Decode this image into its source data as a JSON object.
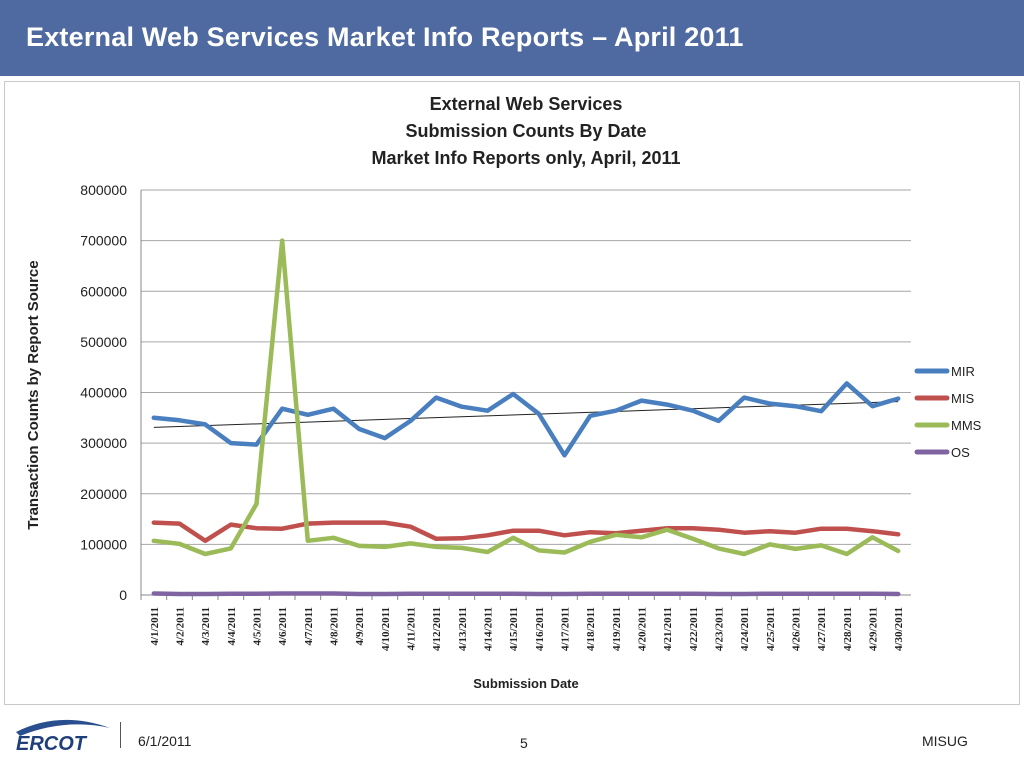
{
  "slide": {
    "title": "External Web Services Market Info Reports – April 2011",
    "footer_date": "6/1/2011",
    "page_number": "5",
    "footer_org": "MISUG",
    "logo_text": "ERCOT"
  },
  "colors": {
    "header_bg": "#4f6aa0",
    "MIR": "#4a7fbf",
    "MIS": "#c0504d",
    "MMS": "#9bbb59",
    "OS": "#8064a2",
    "trend": "#222222"
  },
  "chart_data": {
    "type": "line",
    "title_lines": [
      "External Web Services",
      "Submission Counts By Date",
      "Market Info Reports only, April, 2011"
    ],
    "xlabel": "Submission Date",
    "ylabel": "Transaction Counts by Report Source",
    "ylim": [
      0,
      800000
    ],
    "yticks": [
      0,
      100000,
      200000,
      300000,
      400000,
      500000,
      600000,
      700000,
      800000
    ],
    "grid": true,
    "legend_position": "right",
    "categories": [
      "4/1/2011",
      "4/2/2011",
      "4/3/2011",
      "4/4/2011",
      "4/5/2011",
      "4/6/2011",
      "4/7/2011",
      "4/8/2011",
      "4/9/2011",
      "4/10/2011",
      "4/11/2011",
      "4/12/2011",
      "4/13/2011",
      "4/14/2011",
      "4/15/2011",
      "4/16/2011",
      "4/17/2011",
      "4/18/2011",
      "4/19/2011",
      "4/20/2011",
      "4/21/2011",
      "4/22/2011",
      "4/23/2011",
      "4/24/2011",
      "4/25/2011",
      "4/26/2011",
      "4/27/2011",
      "4/28/2011",
      "4/29/2011",
      "4/30/2011"
    ],
    "series": [
      {
        "name": "MIR",
        "values": [
          350000,
          345000,
          337000,
          300000,
          297000,
          368000,
          356000,
          368000,
          328000,
          310000,
          344000,
          390000,
          372000,
          364000,
          397000,
          358000,
          276000,
          354000,
          364000,
          384000,
          376000,
          364000,
          344000,
          390000,
          378000,
          373000,
          363000,
          418000,
          373000,
          388000
        ]
      },
      {
        "name": "MIS",
        "values": [
          143000,
          141000,
          107000,
          139000,
          132000,
          131000,
          141000,
          143000,
          143000,
          143000,
          135000,
          111000,
          112000,
          118000,
          127000,
          127000,
          118000,
          124000,
          122000,
          127000,
          132000,
          132000,
          129000,
          123000,
          126000,
          123000,
          131000,
          131000,
          126000,
          120000
        ]
      },
      {
        "name": "MMS",
        "values": [
          107000,
          101000,
          81000,
          92000,
          180000,
          700000,
          107000,
          113000,
          97000,
          95000,
          102000,
          95000,
          93000,
          85000,
          113000,
          88000,
          84000,
          105000,
          119000,
          114000,
          129000,
          111000,
          92000,
          81000,
          100000,
          91000,
          98000,
          81000,
          114000,
          87000
        ]
      },
      {
        "name": "OS",
        "values": [
          3000,
          2000,
          2000,
          2500,
          2500,
          3000,
          3000,
          3000,
          2000,
          2000,
          2500,
          2500,
          2500,
          2500,
          2500,
          2000,
          2000,
          2500,
          2500,
          2500,
          2500,
          2500,
          2000,
          2000,
          2500,
          2500,
          2500,
          2500,
          2500,
          2000
        ]
      }
    ],
    "trendline": {
      "series": "MIR",
      "start": 331000,
      "end": 382000
    }
  }
}
